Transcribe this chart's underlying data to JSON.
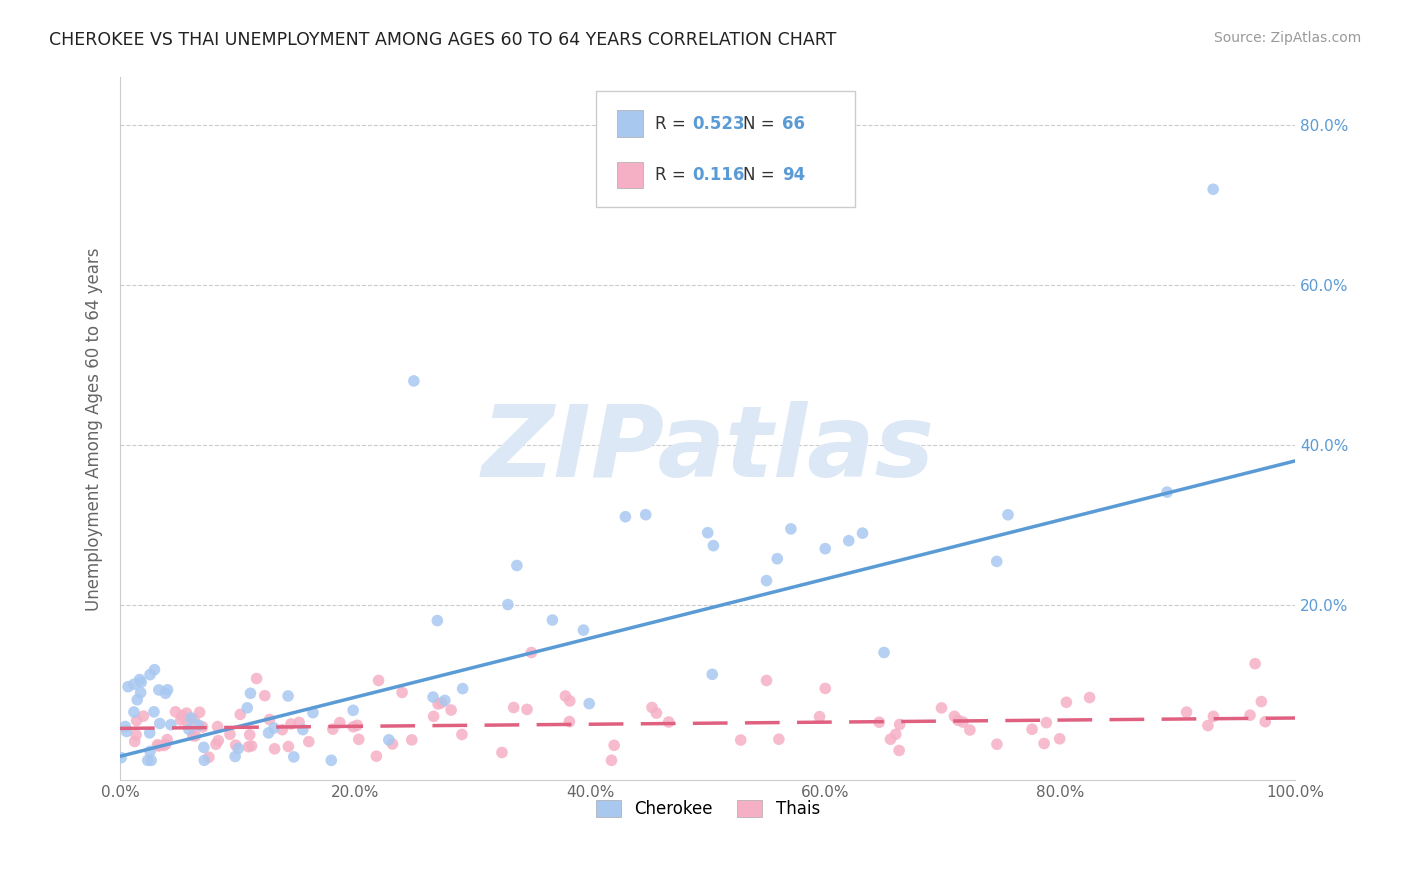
{
  "title": "CHEROKEE VS THAI UNEMPLOYMENT AMONG AGES 60 TO 64 YEARS CORRELATION CHART",
  "source": "Source: ZipAtlas.com",
  "ylabel": "Unemployment Among Ages 60 to 64 years",
  "xlim": [
    0.0,
    1.0
  ],
  "ylim": [
    -0.02,
    0.86
  ],
  "xticks": [
    0.0,
    0.2,
    0.4,
    0.6,
    0.8,
    1.0
  ],
  "xtick_labels": [
    "0.0%",
    "20.0%",
    "40.0%",
    "60.0%",
    "80.0%",
    "100.0%"
  ],
  "ytick_labels": [
    "20.0%",
    "40.0%",
    "60.0%",
    "80.0%"
  ],
  "ytick_vals": [
    0.2,
    0.4,
    0.6,
    0.8
  ],
  "cherokee_R": "0.523",
  "cherokee_N": "66",
  "thai_R": "0.116",
  "thai_N": "94",
  "cherokee_color": "#a8c8f0",
  "thai_color": "#f5b0c5",
  "cherokee_line_color": "#5b9bd5",
  "thai_line_color": "#e06080",
  "cherokee_line_x0": 0.0,
  "cherokee_line_y0": 0.01,
  "cherokee_line_x1": 1.0,
  "cherokee_line_y1": 0.38,
  "thai_line_x0": 0.0,
  "thai_line_y0": 0.045,
  "thai_line_x1": 1.0,
  "thai_line_y1": 0.058,
  "grid_color": "#cccccc",
  "watermark_text": "ZIPatlas",
  "watermark_color": "#dce8f5",
  "legend_label_cherokee": "Cherokee",
  "legend_label_thai": "Thais"
}
